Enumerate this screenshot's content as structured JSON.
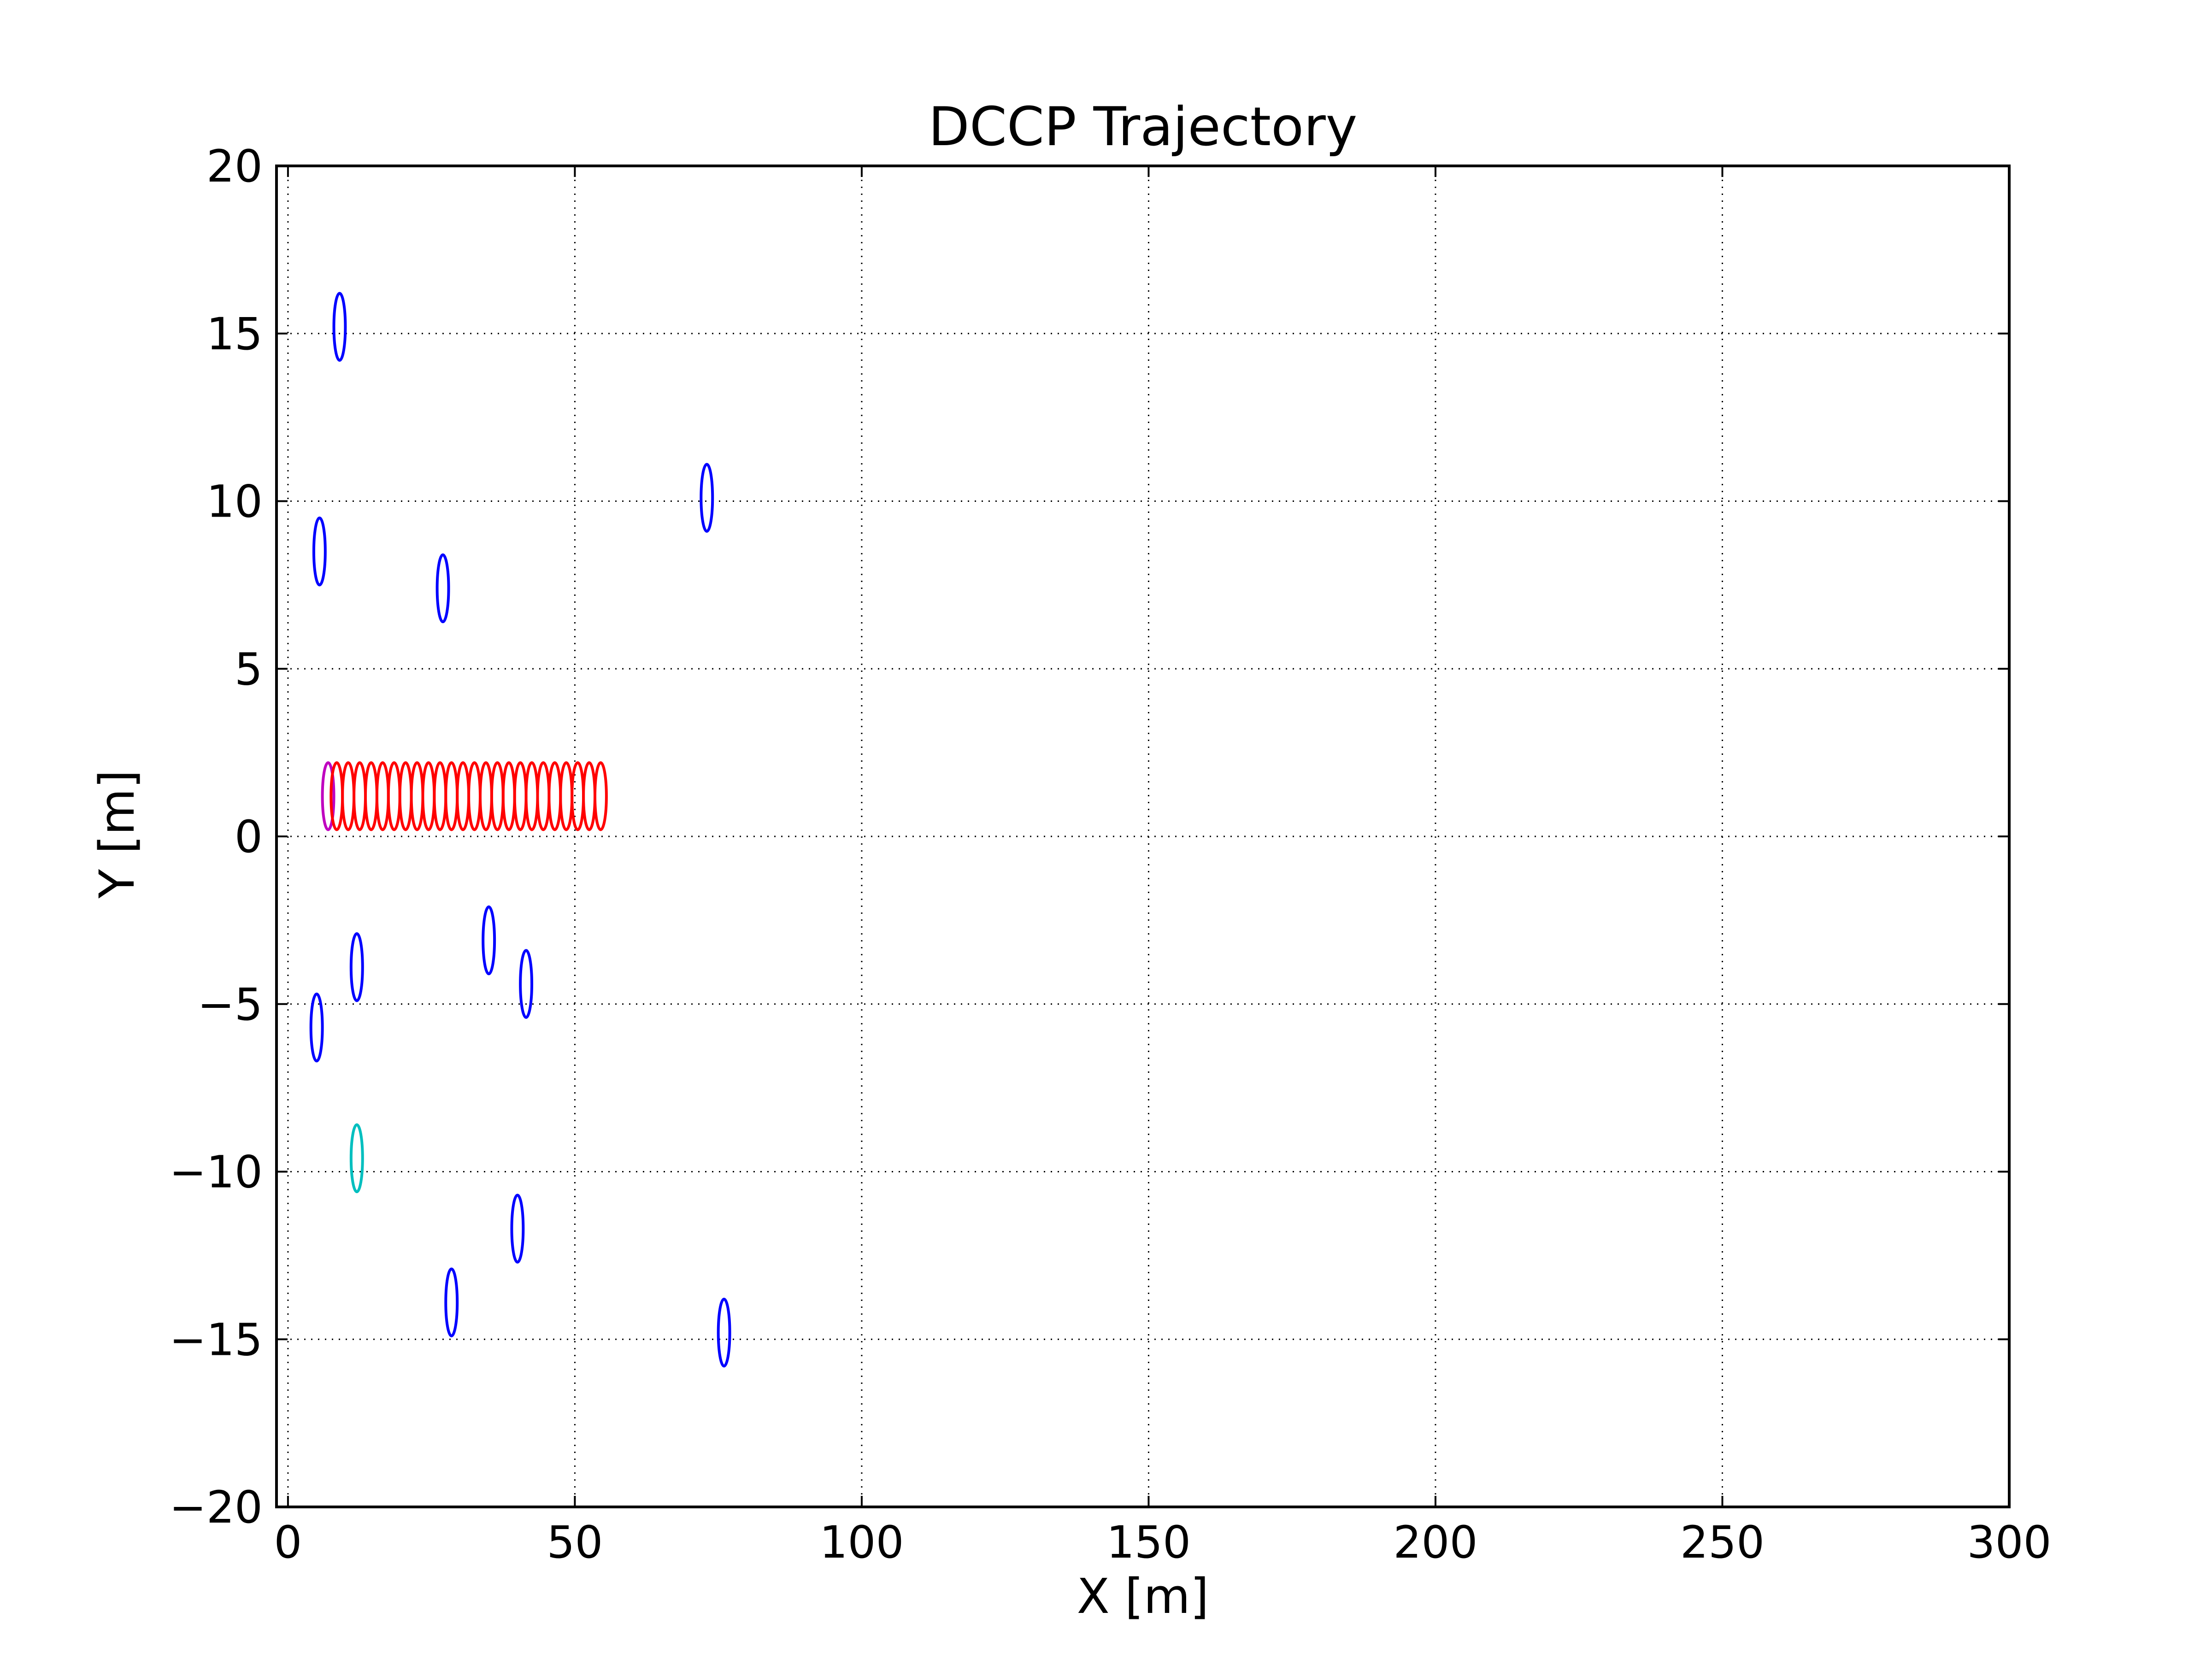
{
  "chart_data": {
    "type": "scatter",
    "title": "DCCP Trajectory",
    "xlabel": "X [m]",
    "ylabel": "Y [m]",
    "xlim": [
      -2,
      300
    ],
    "ylim": [
      -20,
      20
    ],
    "grid": true,
    "x_ticks": [
      "0",
      "50",
      "100",
      "150",
      "200",
      "250",
      "300"
    ],
    "y_ticks": [
      "20",
      "15",
      "10",
      "5",
      "0",
      "−5",
      "−10",
      "−15",
      "−20"
    ],
    "x_tick_values": [
      0,
      50,
      100,
      150,
      200,
      250,
      300
    ],
    "y_tick_values": [
      20,
      15,
      10,
      5,
      0,
      -5,
      -10,
      -15,
      -20
    ],
    "marker": "ellipse",
    "ellipse_half_width": 1.0,
    "ellipse_half_height": 1.0,
    "series": [
      {
        "color": "#0000ff",
        "points": [
          {
            "x": 9,
            "y": 15.2
          },
          {
            "x": 5.5,
            "y": 8.5
          },
          {
            "x": 27,
            "y": 7.4
          },
          {
            "x": 73,
            "y": 10.1
          },
          {
            "x": 35,
            "y": -3.1
          },
          {
            "x": 12,
            "y": -3.9
          },
          {
            "x": 41.5,
            "y": -4.4
          },
          {
            "x": 5,
            "y": -5.7
          },
          {
            "x": 40,
            "y": -11.7
          },
          {
            "x": 28.5,
            "y": -13.9
          },
          {
            "x": 76,
            "y": -14.8
          }
        ]
      },
      {
        "color": "#00bfbf",
        "points": [
          {
            "x": 12,
            "y": -9.6
          }
        ]
      },
      {
        "color": "#bf00bf",
        "points": [
          {
            "x": 7,
            "y": 1.2
          }
        ]
      },
      {
        "color": "#ff0000",
        "points": [
          {
            "x": 8.5,
            "y": 1.2
          },
          {
            "x": 10.5,
            "y": 1.2
          },
          {
            "x": 12.5,
            "y": 1.2
          },
          {
            "x": 14.5,
            "y": 1.2
          },
          {
            "x": 16.5,
            "y": 1.2
          },
          {
            "x": 18.5,
            "y": 1.2
          },
          {
            "x": 20.5,
            "y": 1.2
          },
          {
            "x": 22.5,
            "y": 1.2
          },
          {
            "x": 24.5,
            "y": 1.2
          },
          {
            "x": 26.5,
            "y": 1.2
          },
          {
            "x": 28.5,
            "y": 1.2
          },
          {
            "x": 30.5,
            "y": 1.2
          },
          {
            "x": 32.5,
            "y": 1.2
          },
          {
            "x": 34.5,
            "y": 1.2
          },
          {
            "x": 36.5,
            "y": 1.2
          },
          {
            "x": 38.5,
            "y": 1.2
          },
          {
            "x": 40.5,
            "y": 1.2
          },
          {
            "x": 42.5,
            "y": 1.2
          },
          {
            "x": 44.5,
            "y": 1.2
          },
          {
            "x": 46.5,
            "y": 1.2
          },
          {
            "x": 48.5,
            "y": 1.2
          },
          {
            "x": 50.5,
            "y": 1.2
          },
          {
            "x": 52.5,
            "y": 1.2
          },
          {
            "x": 54.5,
            "y": 1.2
          }
        ]
      }
    ]
  }
}
